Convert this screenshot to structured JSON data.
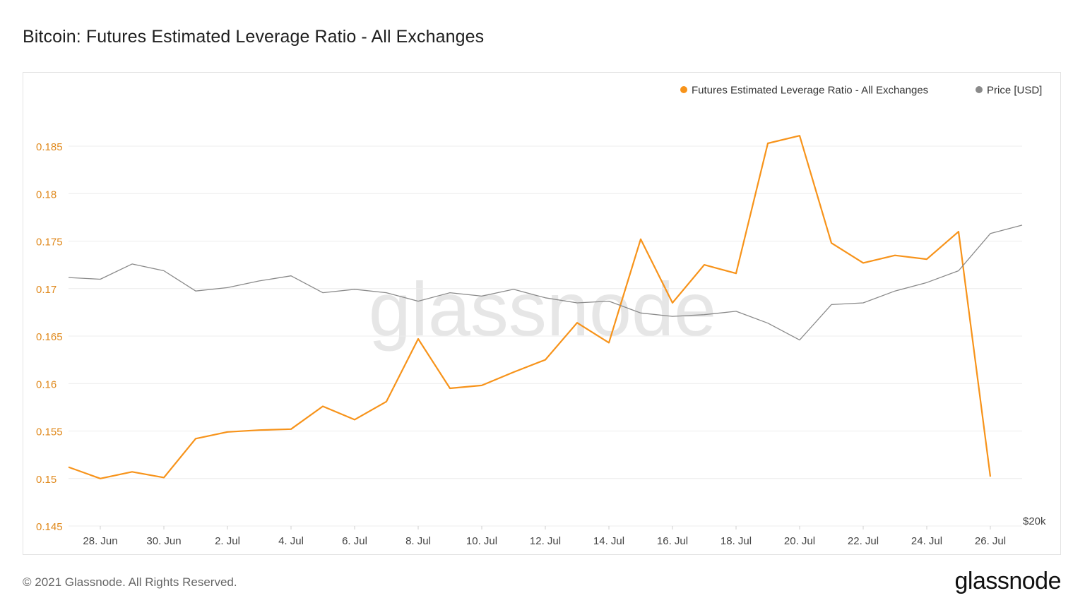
{
  "title": "Bitcoin: Futures Estimated Leverage Ratio - All Exchanges",
  "footer": {
    "copyright": "© 2021 Glassnode. All Rights Reserved.",
    "logo_text": "glassnode"
  },
  "watermark": "glassnode",
  "colors": {
    "leverage": "#f7931a",
    "price": "#8a8a8a",
    "axis_left": "#e08a1e",
    "grid": "#ececec"
  },
  "chart_data": {
    "type": "line",
    "title": "Bitcoin: Futures Estimated Leverage Ratio - All Exchanges",
    "x": [
      "27 Jun",
      "28 Jun",
      "29 Jun",
      "30 Jun",
      "1 Jul",
      "2 Jul",
      "3 Jul",
      "4 Jul",
      "5 Jul",
      "6 Jul",
      "7 Jul",
      "8 Jul",
      "9 Jul",
      "10 Jul",
      "11 Jul",
      "12 Jul",
      "13 Jul",
      "14 Jul",
      "15 Jul",
      "16 Jul",
      "17 Jul",
      "18 Jul",
      "19 Jul",
      "20 Jul",
      "21 Jul",
      "22 Jul",
      "23 Jul",
      "24 Jul",
      "25 Jul",
      "26 Jul",
      "27 Jul"
    ],
    "x_tick_labels": [
      "28. Jun",
      "30. Jun",
      "2. Jul",
      "4. Jul",
      "6. Jul",
      "8. Jul",
      "10. Jul",
      "12. Jul",
      "14. Jul",
      "16. Jul",
      "18. Jul",
      "20. Jul",
      "22. Jul",
      "24. Jul",
      "26. Jul"
    ],
    "y_left": {
      "ticks": [
        "0.145",
        "0.15",
        "0.155",
        "0.16",
        "0.165",
        "0.17",
        "0.175",
        "0.18",
        "0.185"
      ],
      "range": [
        0.145,
        0.1895
      ]
    },
    "y_right": {
      "ticks": [
        "$20k"
      ],
      "range": [
        20000,
        45000
      ]
    },
    "grid": true,
    "legend_position": "top-right",
    "series": [
      {
        "name": "Futures Estimated Leverage Ratio - All Exchanges",
        "axis": "left",
        "values": [
          0.1512,
          0.15,
          0.1507,
          0.1501,
          0.1542,
          0.1549,
          0.1551,
          0.1552,
          0.1576,
          0.1562,
          0.1581,
          0.1647,
          0.1595,
          0.1598,
          0.1612,
          0.1625,
          0.1664,
          0.1643,
          0.1752,
          0.1685,
          0.1725,
          0.1716,
          0.1853,
          0.1861,
          0.1748,
          0.1727,
          0.1735,
          0.1731,
          0.176,
          0.1502,
          null
        ]
      },
      {
        "name": "Price [USD]",
        "axis": "right",
        "values": [
          34700,
          34600,
          35500,
          35100,
          33900,
          34100,
          34500,
          34800,
          33800,
          34000,
          33800,
          33300,
          33800,
          33600,
          34000,
          33500,
          33200,
          33300,
          32600,
          32400,
          32500,
          32700,
          32000,
          31000,
          33100,
          33200,
          33900,
          34400,
          35100,
          37300,
          37800
        ]
      }
    ]
  }
}
